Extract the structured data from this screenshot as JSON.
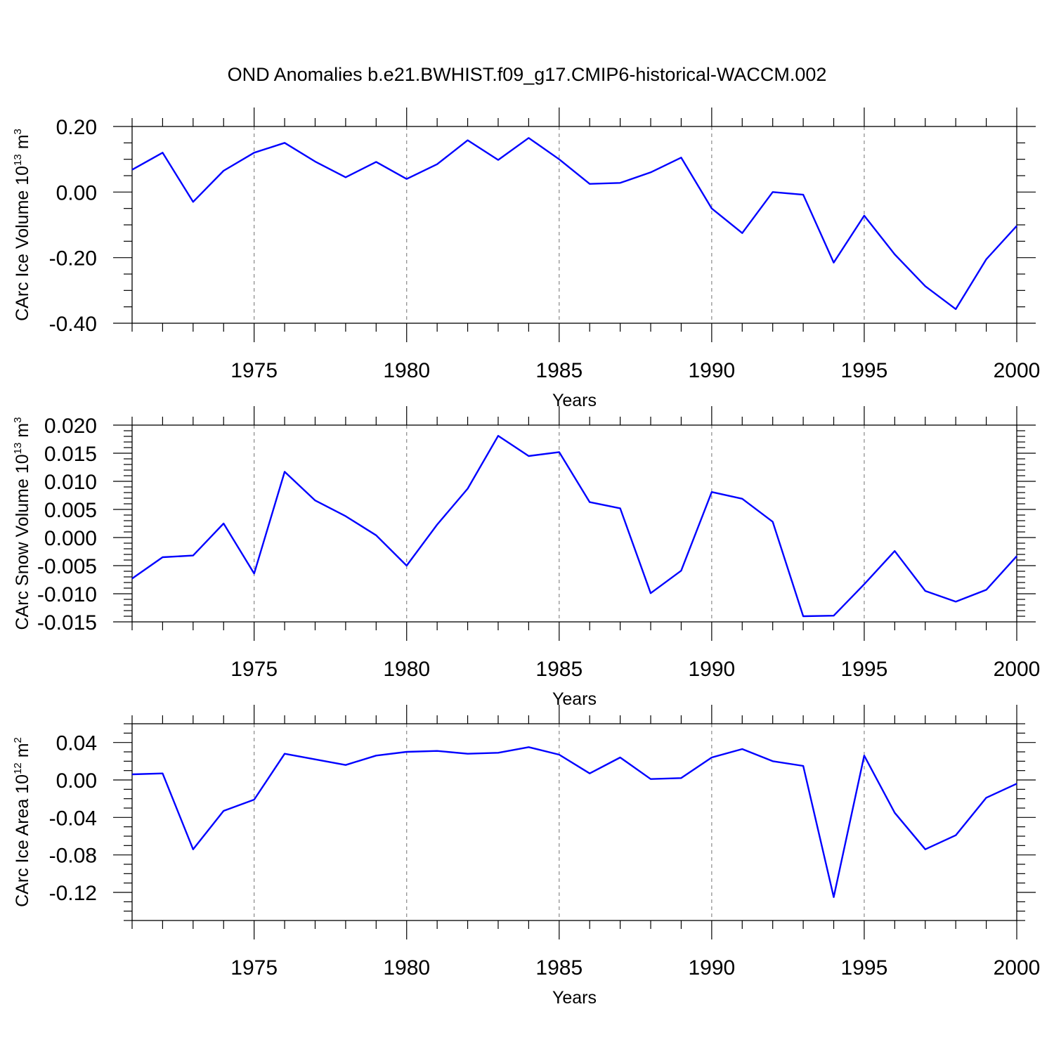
{
  "title": "OND Anomalies b.e21.BWHIST.f09_g17.CMIP6-historical-WACCM.002",
  "colors": {
    "line": "#0000ff",
    "grid": "#888888"
  },
  "chart_data": [
    {
      "type": "line",
      "ylabel": {
        "text": "CArc Ice Volume 10",
        "exp": "13",
        "unit": "m",
        "unit_exp": "3"
      },
      "xlabel": "Years",
      "xlim": [
        1971,
        2000
      ],
      "ylim": [
        -0.4,
        0.2
      ],
      "yticks": [
        0.2,
        0.0,
        -0.2,
        -0.4
      ],
      "ytick_labels": [
        "0.20",
        "0.00",
        "-0.20",
        "-0.40"
      ],
      "xticks": [
        1975,
        1980,
        1985,
        1990,
        1995,
        2000
      ],
      "xtick_labels": [
        "1975",
        "1980",
        "1985",
        "1990",
        "1995",
        "2000"
      ],
      "grid": "dashed vertical lines at labeled years",
      "x": [
        1971,
        1972,
        1973,
        1974,
        1975,
        1976,
        1977,
        1978,
        1979,
        1980,
        1981,
        1982,
        1983,
        1984,
        1985,
        1986,
        1987,
        1988,
        1989,
        1990,
        1991,
        1992,
        1993,
        1994,
        1995,
        1996,
        1997,
        1998,
        1999,
        2000
      ],
      "values": [
        0.068,
        0.12,
        -0.03,
        0.065,
        0.12,
        0.15,
        0.093,
        0.045,
        0.092,
        0.04,
        0.085,
        0.158,
        0.098,
        0.165,
        0.1,
        0.025,
        0.028,
        0.06,
        0.105,
        -0.05,
        -0.125,
        0.0,
        -0.008,
        -0.215,
        -0.072,
        -0.19,
        -0.287,
        -0.357,
        -0.205,
        -0.103
      ]
    },
    {
      "type": "line",
      "ylabel": {
        "text": "CArc Snow Volume 10",
        "exp": "13",
        "unit": "m",
        "unit_exp": "3"
      },
      "xlabel": "Years",
      "xlim": [
        1971,
        2000
      ],
      "ylim": [
        -0.015,
        0.02
      ],
      "yticks": [
        0.02,
        0.015,
        0.01,
        0.005,
        0.0,
        -0.005,
        -0.01,
        -0.015
      ],
      "ytick_labels": [
        "0.020",
        "0.015",
        "0.010",
        "0.005",
        "0.000",
        "-0.005",
        "-0.010",
        "-0.015"
      ],
      "xticks": [
        1975,
        1980,
        1985,
        1990,
        1995,
        2000
      ],
      "xtick_labels": [
        "1975",
        "1980",
        "1985",
        "1990",
        "1995",
        "2000"
      ],
      "grid": "dashed vertical lines at labeled years",
      "x": [
        1971,
        1972,
        1973,
        1974,
        1975,
        1976,
        1977,
        1978,
        1979,
        1980,
        1981,
        1982,
        1983,
        1984,
        1985,
        1986,
        1987,
        1988,
        1989,
        1990,
        1991,
        1992,
        1993,
        1994,
        1995,
        1996,
        1997,
        1998,
        1999,
        2000
      ],
      "values": [
        -0.0073,
        -0.0035,
        -0.0032,
        0.0025,
        -0.0064,
        0.0117,
        0.0066,
        0.0038,
        0.0004,
        -0.005,
        0.0023,
        0.0087,
        0.0181,
        0.0145,
        0.0152,
        0.0063,
        0.0052,
        -0.0099,
        -0.0059,
        0.0081,
        0.0069,
        0.0028,
        -0.014,
        -0.0139,
        -0.0083,
        -0.0024,
        -0.0095,
        -0.0114,
        -0.0093,
        -0.0033
      ]
    },
    {
      "type": "line",
      "ylabel": {
        "text": "CArc Ice Area 10",
        "exp": "12",
        "unit": "m",
        "unit_exp": "2"
      },
      "xlabel": "Years",
      "xlim": [
        1971,
        2000
      ],
      "ylim": [
        -0.15,
        0.06
      ],
      "yticks": [
        0.04,
        0.0,
        -0.04,
        -0.08,
        -0.12
      ],
      "ytick_labels": [
        "0.04",
        "0.00",
        "-0.04",
        "-0.08",
        "-0.12"
      ],
      "xticks": [
        1975,
        1980,
        1985,
        1990,
        1995,
        2000
      ],
      "xtick_labels": [
        "1975",
        "1980",
        "1985",
        "1990",
        "1995",
        "2000"
      ],
      "grid": "dashed vertical lines at labeled years",
      "x": [
        1971,
        1972,
        1973,
        1974,
        1975,
        1976,
        1977,
        1978,
        1979,
        1980,
        1981,
        1982,
        1983,
        1984,
        1985,
        1986,
        1987,
        1988,
        1989,
        1990,
        1991,
        1992,
        1993,
        1994,
        1995,
        1996,
        1997,
        1998,
        1999,
        2000
      ],
      "values": [
        0.006,
        0.007,
        -0.074,
        -0.033,
        -0.021,
        0.028,
        0.022,
        0.016,
        0.026,
        0.03,
        0.031,
        0.028,
        0.029,
        0.035,
        0.027,
        0.007,
        0.024,
        0.001,
        0.002,
        0.024,
        0.033,
        0.02,
        0.015,
        -0.125,
        0.026,
        -0.035,
        -0.074,
        -0.059,
        -0.019,
        -0.004
      ]
    }
  ]
}
